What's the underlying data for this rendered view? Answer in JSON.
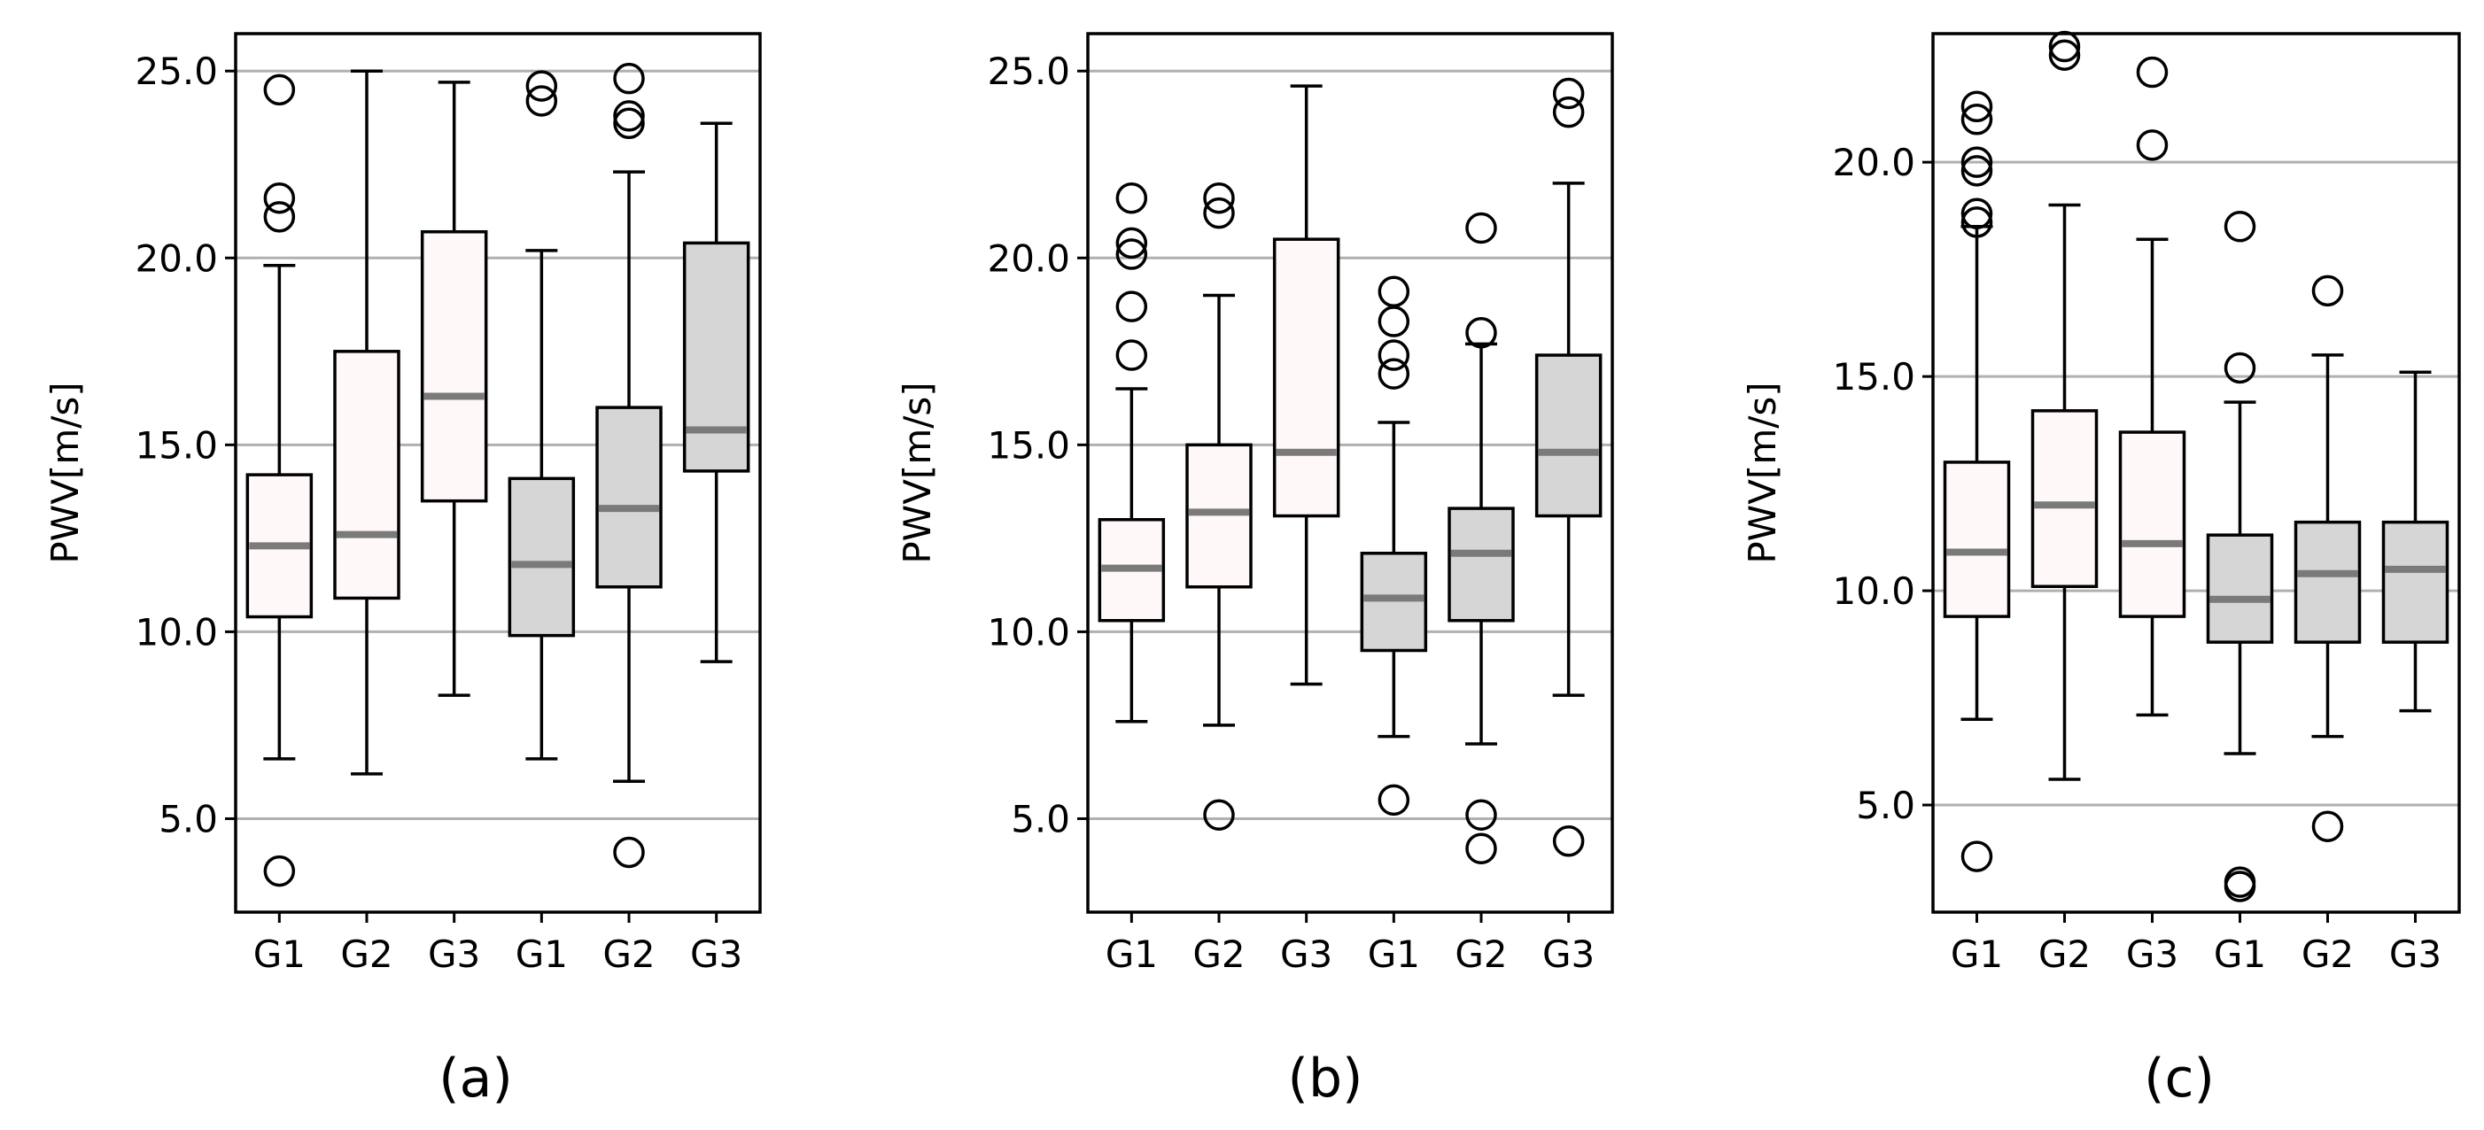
{
  "chart_data": [
    {
      "type": "box",
      "caption": "(a)",
      "ylabel": "PWV[m/s]",
      "ylim": [
        2.5,
        26.0
      ],
      "yticks": [
        5.0,
        10.0,
        15.0,
        20.0,
        25.0
      ],
      "ytick_labels": [
        "5.0",
        "10.0",
        "15.0",
        "20.0",
        "25.0"
      ],
      "grid": "horizontal",
      "categories": [
        "G1",
        "G2",
        "G3",
        "G1",
        "G2",
        "G3"
      ],
      "boxes": [
        {
          "group": "G1",
          "fill": "#fff8f8",
          "whisker_low": 6.6,
          "q1": 10.4,
          "median": 12.3,
          "q3": 14.2,
          "whisker_high": 19.8,
          "outliers": [
            3.6,
            21.1,
            21.6,
            24.5
          ]
        },
        {
          "group": "G2",
          "fill": "#fff8f8",
          "whisker_low": 6.2,
          "q1": 10.9,
          "median": 12.6,
          "q3": 17.5,
          "whisker_high": 25.0,
          "outliers": []
        },
        {
          "group": "G3",
          "fill": "#fff8f8",
          "whisker_low": 8.3,
          "q1": 13.5,
          "median": 16.3,
          "q3": 20.7,
          "whisker_high": 24.7,
          "outliers": []
        },
        {
          "group": "G1",
          "fill": "#d6d6d6",
          "whisker_low": 6.6,
          "q1": 9.9,
          "median": 11.8,
          "q3": 14.1,
          "whisker_high": 20.2,
          "outliers": [
            24.2,
            24.6
          ]
        },
        {
          "group": "G2",
          "fill": "#d6d6d6",
          "whisker_low": 6.0,
          "q1": 11.2,
          "median": 13.3,
          "q3": 16.0,
          "whisker_high": 22.3,
          "outliers": [
            4.1,
            23.6,
            23.8,
            24.8
          ]
        },
        {
          "group": "G3",
          "fill": "#d6d6d6",
          "whisker_low": 9.2,
          "q1": 14.3,
          "median": 15.4,
          "q3": 20.4,
          "whisker_high": 23.6,
          "outliers": []
        }
      ]
    },
    {
      "type": "box",
      "caption": "(b)",
      "ylabel": "PWV[m/s]",
      "ylim": [
        2.5,
        26.0
      ],
      "yticks": [
        5.0,
        10.0,
        15.0,
        20.0,
        25.0
      ],
      "ytick_labels": [
        "5.0",
        "10.0",
        "15.0",
        "20.0",
        "25.0"
      ],
      "grid": "horizontal",
      "categories": [
        "G1",
        "G2",
        "G3",
        "G1",
        "G2",
        "G3"
      ],
      "boxes": [
        {
          "group": "G1",
          "fill": "#fff8f8",
          "whisker_low": 7.6,
          "q1": 10.3,
          "median": 11.7,
          "q3": 13.0,
          "whisker_high": 16.5,
          "outliers": [
            17.4,
            18.7,
            20.1,
            20.4,
            21.6
          ]
        },
        {
          "group": "G2",
          "fill": "#fff8f8",
          "whisker_low": 7.5,
          "q1": 11.2,
          "median": 13.2,
          "q3": 15.0,
          "whisker_high": 19.0,
          "outliers": [
            5.1,
            21.2,
            21.6
          ]
        },
        {
          "group": "G3",
          "fill": "#fff8f8",
          "whisker_low": 8.6,
          "q1": 13.1,
          "median": 14.8,
          "q3": 20.5,
          "whisker_high": 24.6,
          "outliers": []
        },
        {
          "group": "G1",
          "fill": "#d6d6d6",
          "whisker_low": 7.2,
          "q1": 9.5,
          "median": 10.9,
          "q3": 12.1,
          "whisker_high": 15.6,
          "outliers": [
            5.5,
            16.9,
            17.4,
            18.3,
            19.1
          ]
        },
        {
          "group": "G2",
          "fill": "#d6d6d6",
          "whisker_low": 7.0,
          "q1": 10.3,
          "median": 12.1,
          "q3": 13.3,
          "whisker_high": 17.7,
          "outliers": [
            4.2,
            5.1,
            18.0,
            20.8
          ]
        },
        {
          "group": "G3",
          "fill": "#d6d6d6",
          "whisker_low": 8.3,
          "q1": 13.1,
          "median": 14.8,
          "q3": 17.4,
          "whisker_high": 22.0,
          "outliers": [
            4.4,
            23.9,
            24.4
          ]
        }
      ]
    },
    {
      "type": "box",
      "caption": "(c)",
      "ylabel": "PWV[m/s]",
      "ylim": [
        2.5,
        23.0
      ],
      "yticks": [
        5.0,
        10.0,
        15.0,
        20.0
      ],
      "ytick_labels": [
        "5.0",
        "10.0",
        "15.0",
        "20.0"
      ],
      "grid": "horizontal",
      "categories": [
        "G1",
        "G2",
        "G3",
        "G1",
        "G2",
        "G3"
      ],
      "boxes": [
        {
          "group": "G1",
          "fill": "#fff8f8",
          "whisker_low": 7.0,
          "q1": 9.4,
          "median": 10.9,
          "q3": 13.0,
          "whisker_high": 18.5,
          "outliers": [
            3.8,
            18.6,
            18.8,
            19.8,
            20.0,
            21.0,
            21.3
          ]
        },
        {
          "group": "G2",
          "fill": "#fff8f8",
          "whisker_low": 5.6,
          "q1": 10.1,
          "median": 12.0,
          "q3": 14.2,
          "whisker_high": 19.0,
          "outliers": [
            22.5,
            22.7
          ]
        },
        {
          "group": "G3",
          "fill": "#fff8f8",
          "whisker_low": 7.1,
          "q1": 9.4,
          "median": 11.1,
          "q3": 13.7,
          "whisker_high": 18.2,
          "outliers": [
            20.4,
            22.1
          ]
        },
        {
          "group": "G1",
          "fill": "#d6d6d6",
          "whisker_low": 6.2,
          "q1": 8.8,
          "median": 9.8,
          "q3": 11.3,
          "whisker_high": 14.4,
          "outliers": [
            3.1,
            3.2,
            15.2,
            18.5
          ]
        },
        {
          "group": "G2",
          "fill": "#d6d6d6",
          "whisker_low": 6.6,
          "q1": 8.8,
          "median": 10.4,
          "q3": 11.6,
          "whisker_high": 15.5,
          "outliers": [
            4.5,
            17.0
          ]
        },
        {
          "group": "G3",
          "fill": "#d6d6d6",
          "whisker_low": 7.2,
          "q1": 8.8,
          "median": 10.5,
          "q3": 11.6,
          "whisker_high": 15.1,
          "outliers": []
        }
      ]
    }
  ],
  "colors": {
    "grid": "#b0b0b0",
    "median": "#7a7a7a",
    "box_edge": "#000000",
    "axes": "#000000",
    "background": "#ffffff"
  }
}
